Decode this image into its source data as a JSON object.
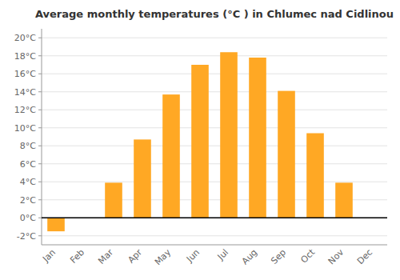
{
  "chart_data": {
    "type": "bar",
    "title": "Average monthly temperatures (°C ) in Chlumec nad Cidlinou",
    "categories": [
      "Jan",
      "Feb",
      "Mar",
      "Apr",
      "May",
      "Jun",
      "Jul",
      "Aug",
      "Sep",
      "Oct",
      "Nov",
      "Dec"
    ],
    "values": [
      -1.5,
      0,
      3.9,
      8.7,
      13.7,
      17.0,
      18.4,
      17.8,
      14.1,
      9.4,
      3.9,
      0
    ],
    "color": "#FFA824",
    "ylim": [
      -3,
      21
    ],
    "yticks": [
      {
        "value": -2,
        "label": "-2°C"
      },
      {
        "value": 0,
        "label": "0°C"
      },
      {
        "value": 2,
        "label": "2°C"
      },
      {
        "value": 4,
        "label": "4°C"
      },
      {
        "value": 6,
        "label": "6°C"
      },
      {
        "value": 8,
        "label": "8°C"
      },
      {
        "value": 10,
        "label": "10°C"
      },
      {
        "value": 12,
        "label": "12°C"
      },
      {
        "value": 14,
        "label": "14°C"
      },
      {
        "value": 16,
        "label": "16°C"
      },
      {
        "value": 18,
        "label": "18°C"
      },
      {
        "value": 20,
        "label": "20°C"
      }
    ],
    "grid": true
  }
}
